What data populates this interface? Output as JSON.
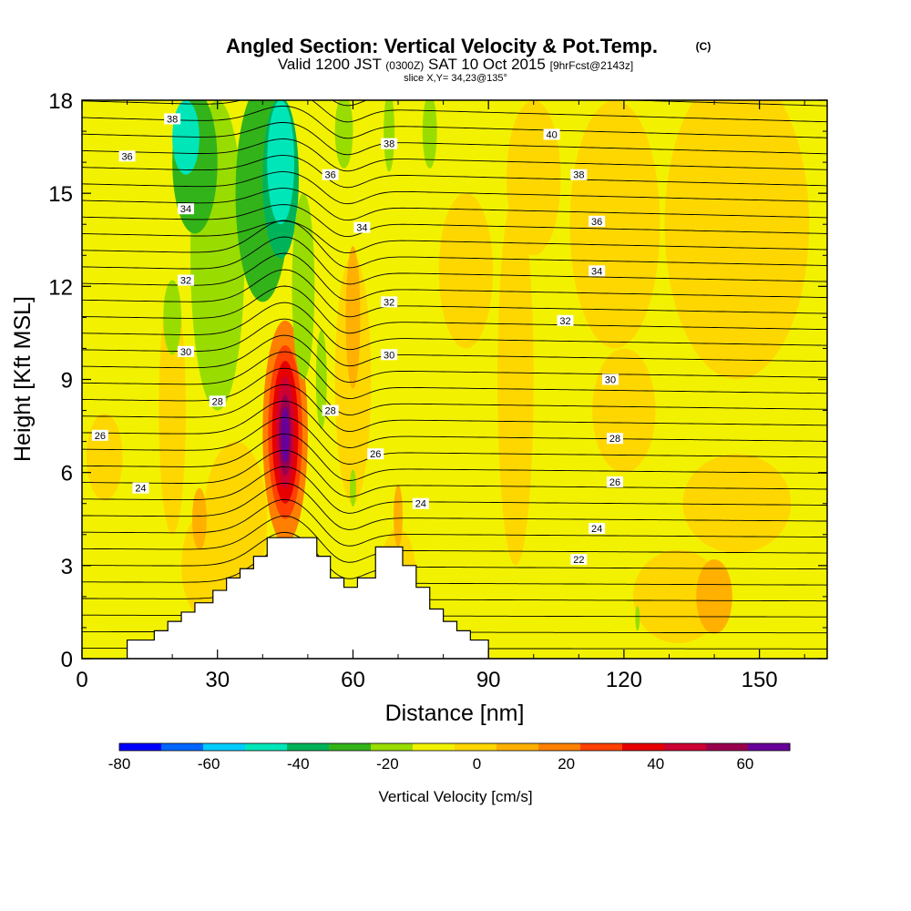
{
  "chart_data": {
    "type": "heatmap",
    "title": "Angled Section: Vertical Velocity & Pot.Temp.",
    "title_suffix": "(C)",
    "subtitle": {
      "part1": "Valid 1200 JST",
      "part2": "(0300Z)",
      "part3": "SAT 10 Oct 2015",
      "part4": "[9hrFcst@2143z]"
    },
    "slice_label": "slice X,Y= 34,23@135°",
    "xlabel": "Distance [nm]",
    "ylabel": "Height [Kft MSL]",
    "xlim": [
      0,
      165
    ],
    "ylim": [
      0,
      18
    ],
    "x_ticks": [
      0,
      30,
      60,
      90,
      120,
      150
    ],
    "y_ticks": [
      0,
      3,
      6,
      9,
      12,
      15,
      18
    ],
    "colorbar": {
      "label": "Vertical Velocity [cm/s]",
      "range": [
        -80,
        70
      ],
      "ticks": [
        -80,
        -60,
        -40,
        -20,
        0,
        20,
        40,
        60
      ],
      "colors": [
        "#0000ff",
        "#0066ff",
        "#00ccff",
        "#00e6b8",
        "#00b35a",
        "#33b31a",
        "#99dd00",
        "#f2f200",
        "#ffd700",
        "#ffb000",
        "#ff8000",
        "#ff4000",
        "#e60000",
        "#cc0033",
        "#99004d",
        "#660099"
      ]
    },
    "velocity_features": [
      {
        "name": "updraft core",
        "x": 45,
        "y": 7.2,
        "value": 65
      },
      {
        "name": "downdraft",
        "x": 44,
        "y": 15.5,
        "value": -45
      },
      {
        "name": "downdraft",
        "x": 23,
        "y": 16.5,
        "value": -45
      }
    ],
    "isentropes": [
      {
        "value": 22,
        "label_x": 110,
        "label_y": 3.2
      },
      {
        "value": 24,
        "label_x": 13,
        "label_y": 5.5
      },
      {
        "value": 24,
        "label_x": 75,
        "label_y": 5.0
      },
      {
        "value": 24,
        "label_x": 114,
        "label_y": 4.2
      },
      {
        "value": 26,
        "label_x": 4,
        "label_y": 7.2
      },
      {
        "value": 26,
        "label_x": 65,
        "label_y": 6.6
      },
      {
        "value": 26,
        "label_x": 118,
        "label_y": 5.7
      },
      {
        "value": 28,
        "label_x": 30,
        "label_y": 8.3
      },
      {
        "value": 28,
        "label_x": 55,
        "label_y": 8.0
      },
      {
        "value": 28,
        "label_x": 118,
        "label_y": 7.1
      },
      {
        "value": 30,
        "label_x": 23,
        "label_y": 9.9
      },
      {
        "value": 30,
        "label_x": 68,
        "label_y": 9.8
      },
      {
        "value": 30,
        "label_x": 117,
        "label_y": 9.0
      },
      {
        "value": 32,
        "label_x": 23,
        "label_y": 12.2
      },
      {
        "value": 32,
        "label_x": 68,
        "label_y": 11.5
      },
      {
        "value": 32,
        "label_x": 107,
        "label_y": 10.9
      },
      {
        "value": 34,
        "label_x": 23,
        "label_y": 14.5
      },
      {
        "value": 34,
        "label_x": 62,
        "label_y": 13.9
      },
      {
        "value": 34,
        "label_x": 114,
        "label_y": 12.5
      },
      {
        "value": 36,
        "label_x": 10,
        "label_y": 16.2
      },
      {
        "value": 36,
        "label_x": 55,
        "label_y": 15.6
      },
      {
        "value": 36,
        "label_x": 114,
        "label_y": 14.1
      },
      {
        "value": 38,
        "label_x": 20,
        "label_y": 17.4
      },
      {
        "value": 38,
        "label_x": 68,
        "label_y": 16.6
      },
      {
        "value": 38,
        "label_x": 110,
        "label_y": 15.6
      },
      {
        "value": 40,
        "label_x": 104,
        "label_y": 16.9
      }
    ],
    "terrain": [
      [
        0,
        0
      ],
      [
        10,
        0
      ],
      [
        10,
        0.6
      ],
      [
        16,
        0.6
      ],
      [
        16,
        0.9
      ],
      [
        19,
        0.9
      ],
      [
        19,
        1.2
      ],
      [
        22,
        1.2
      ],
      [
        22,
        1.5
      ],
      [
        25,
        1.5
      ],
      [
        25,
        1.8
      ],
      [
        29,
        1.8
      ],
      [
        29,
        2.2
      ],
      [
        32,
        2.2
      ],
      [
        32,
        2.6
      ],
      [
        35,
        2.6
      ],
      [
        35,
        2.9
      ],
      [
        38,
        2.9
      ],
      [
        38,
        3.3
      ],
      [
        41,
        3.3
      ],
      [
        41,
        3.9
      ],
      [
        52,
        3.9
      ],
      [
        52,
        3.3
      ],
      [
        55,
        3.3
      ],
      [
        55,
        2.6
      ],
      [
        58,
        2.6
      ],
      [
        58,
        2.3
      ],
      [
        61,
        2.3
      ],
      [
        61,
        2.6
      ],
      [
        65,
        2.6
      ],
      [
        65,
        3.6
      ],
      [
        71,
        3.6
      ],
      [
        71,
        3.0
      ],
      [
        74,
        3.0
      ],
      [
        74,
        2.3
      ],
      [
        77,
        2.3
      ],
      [
        77,
        1.6
      ],
      [
        80,
        1.6
      ],
      [
        80,
        1.2
      ],
      [
        83,
        1.2
      ],
      [
        83,
        0.9
      ],
      [
        86,
        0.9
      ],
      [
        86,
        0.6
      ],
      [
        90,
        0.6
      ],
      [
        90,
        0
      ],
      [
        165,
        0
      ]
    ]
  }
}
